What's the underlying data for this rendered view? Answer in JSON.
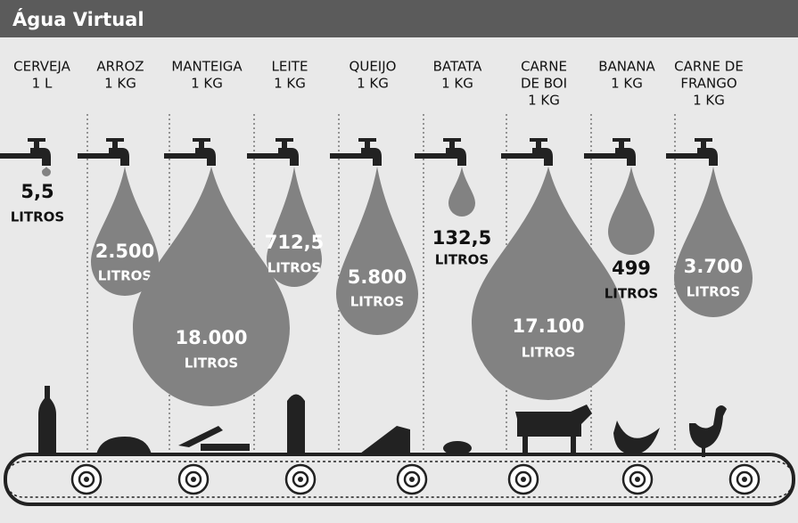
{
  "title": "Água Virtual",
  "items": [
    {
      "label": [
        "CERVEJA",
        "1 L"
      ],
      "amount": "5,5",
      "unit": "LITROS"
    },
    {
      "label": [
        "ARROZ",
        "1 KG"
      ],
      "amount": "2.500",
      "unit": "LITROS"
    },
    {
      "label": [
        "MANTEIGA",
        "1 KG"
      ],
      "amount": "18.000",
      "unit": "LITROS"
    },
    {
      "label": [
        "LEITE",
        "1 KG"
      ],
      "amount": "712,5",
      "unit": "LITROS"
    },
    {
      "label": [
        "QUEIJO",
        "1 KG"
      ],
      "amount": "5.800",
      "unit": "LITROS"
    },
    {
      "label": [
        "BATATA",
        "1 KG"
      ],
      "amount": "132,5",
      "unit": "LITROS"
    },
    {
      "label": [
        "CARNE",
        "DE BOI",
        "1 KG"
      ],
      "amount": "17.100",
      "unit": "LITROS"
    },
    {
      "label": [
        "BANANA",
        "1 KG"
      ],
      "amount": "499",
      "unit": "LITROS"
    },
    {
      "label": [
        "CARNE DE",
        "FRANGO",
        "1 KG"
      ],
      "amount": "3.700",
      "unit": "LITROS"
    }
  ]
}
